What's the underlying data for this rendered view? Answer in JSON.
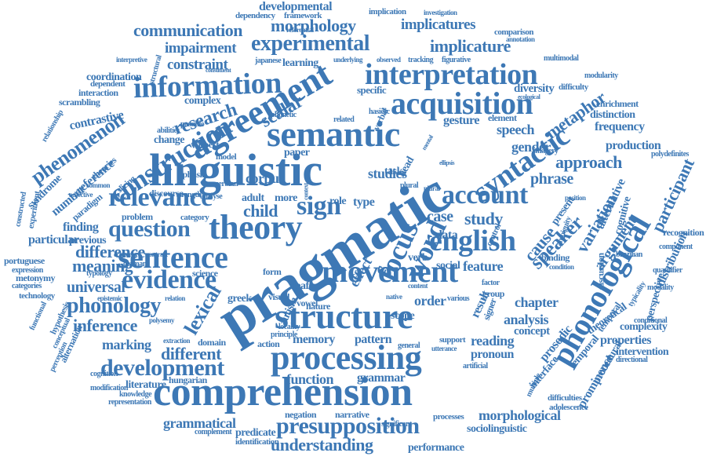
{
  "accent_color": "#3d78b5",
  "background_color": "#ffffff",
  "words": [
    "developmental",
    "dependency",
    "framework",
    "implication",
    "investigation",
    "communication",
    "morphology",
    "implicatures",
    "comparison",
    "impairment",
    "experimental",
    "implicature",
    "constraint",
    "japanese",
    "learning",
    "underlying",
    "observed",
    "tracking",
    "figurative",
    "multimodal",
    "interpretation",
    "information",
    "agreement",
    "acquisition",
    "coordination",
    "dependent",
    "interaction",
    "scrambling",
    "contrastive",
    "phenomenon",
    "research",
    "scalar",
    "specific",
    "diversity",
    "difficulty",
    "modularity",
    "enrichment",
    "distinction",
    "frequency",
    "metaphor",
    "semantic",
    "construction",
    "gesture",
    "element",
    "speech",
    "gender",
    "production",
    "linguistic",
    "pragmatic",
    "syntactic",
    "approach",
    "relevance",
    "sign",
    "account",
    "reference",
    "syndrome",
    "corpus",
    "studies",
    "phrase",
    "variation",
    "alternative",
    "participant",
    "theory",
    "child",
    "english",
    "question",
    "focus",
    "word",
    "case",
    "study",
    "cause",
    "speaker",
    "argument",
    "sentence",
    "difference",
    "finding",
    "particular",
    "meaning",
    "data",
    "movement",
    "evidence",
    "universal",
    "phonology",
    "inference",
    "effect",
    "order",
    "chapter",
    "analysis",
    "result",
    "scope",
    "structure",
    "phonological",
    "lexical",
    "marking",
    "different",
    "memory",
    "pattern",
    "reading",
    "concept",
    "development",
    "processing",
    "pronoun",
    "prosodic",
    "theoretical",
    "properties",
    "complexity",
    "intervention",
    "comprehension",
    "function",
    "grammar",
    "hungarian",
    "literature",
    "interface",
    "temporal",
    "grammatical",
    "presupposition",
    "morphological",
    "sociolinguistic",
    "understanding",
    "performance",
    "predicate",
    "negation",
    "narrative",
    "processes",
    "difficulties",
    "adolescence",
    "portuguese",
    "metonymy",
    "technology",
    "expression",
    "categories",
    "alternation",
    "cognition",
    "economy",
    "contrast",
    "german",
    "typology",
    "science",
    "feature",
    "verb",
    "social",
    "context",
    "aphasia",
    "model",
    "discourse",
    "strength",
    "analyse",
    "problem",
    "category",
    "previous",
    "paradigm",
    "theories",
    "number",
    "slicing",
    "adjective",
    "common",
    "change",
    "abilities",
    "possible",
    "complex",
    "aspect",
    "paper",
    "related",
    "verbal",
    "hasidic",
    "phonetic",
    "ecological",
    "adult",
    "more",
    "role",
    "type",
    "serbian",
    "task",
    "head",
    "plural",
    "imagery",
    "distribution",
    "recognition",
    "present",
    "cognitive",
    "brazilian",
    "procedural",
    "prominence",
    "temporal",
    "directional",
    "modification",
    "representation",
    "knowledge",
    "identification",
    "complement",
    "significant",
    "deaf",
    "form",
    "nature",
    "visual",
    "vowel",
    "autism",
    "locality",
    "principle",
    "action",
    "domain",
    "extraction",
    "polysemy",
    "relation",
    "epistemic",
    "greek",
    "general",
    "support",
    "utterance",
    "artificial",
    "native",
    "content",
    "various",
    "signer",
    "group",
    "control",
    "binding",
    "condition",
    "discussion",
    "modality",
    "quantifier",
    "polydefinites",
    "perspective",
    "component",
    "conditional",
    "typicality",
    "interpretive",
    "structural",
    "relationship",
    "constructed",
    "experiment",
    "annotation",
    "referential",
    "hypothesis",
    "conceptual",
    "perception",
    "functional",
    "constituent",
    "factor",
    "position",
    "ambiguity",
    "multiple",
    "mental",
    "ellipsis",
    "plural"
  ]
}
